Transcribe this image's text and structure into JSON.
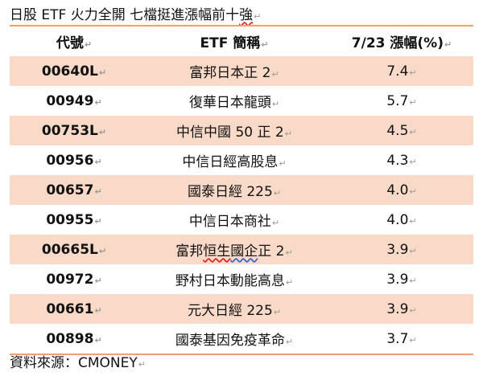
{
  "title": {
    "prefix": "日股 ETF 火力全開  七檔挺進漲幅前十",
    "squiggle_part": "強"
  },
  "paragraph_mark": "↵",
  "table": {
    "headers": [
      "代號",
      "ETF 簡稱",
      "7/23 漲幅(%)"
    ],
    "rows": [
      {
        "code": "00640L",
        "name": "富邦日本正 2",
        "change": "7.4"
      },
      {
        "code": "00949",
        "name": "復華日本龍頭",
        "change": "5.7"
      },
      {
        "code": "00753L",
        "name": "中信中國 50 正 2",
        "change": "4.5"
      },
      {
        "code": "00956",
        "name": "中信日經高股息",
        "change": "4.3"
      },
      {
        "code": "00657",
        "name": "國泰日經 225",
        "change": "4.0"
      },
      {
        "code": "00955",
        "name": "中信日本商社",
        "change": "4.0"
      },
      {
        "code": "00665L",
        "name_parts": [
          "富邦",
          "恒生",
          "國企",
          "正 2"
        ],
        "change": "3.9"
      },
      {
        "code": "00972",
        "name": "野村日本動能高息",
        "change": "3.9"
      },
      {
        "code": "00661",
        "name": "元大日經 225",
        "change": "3.9"
      },
      {
        "code": "00898",
        "name": "國泰基因免疫革命",
        "change": "3.7"
      }
    ]
  },
  "source": "資料來源：CMONEY"
}
